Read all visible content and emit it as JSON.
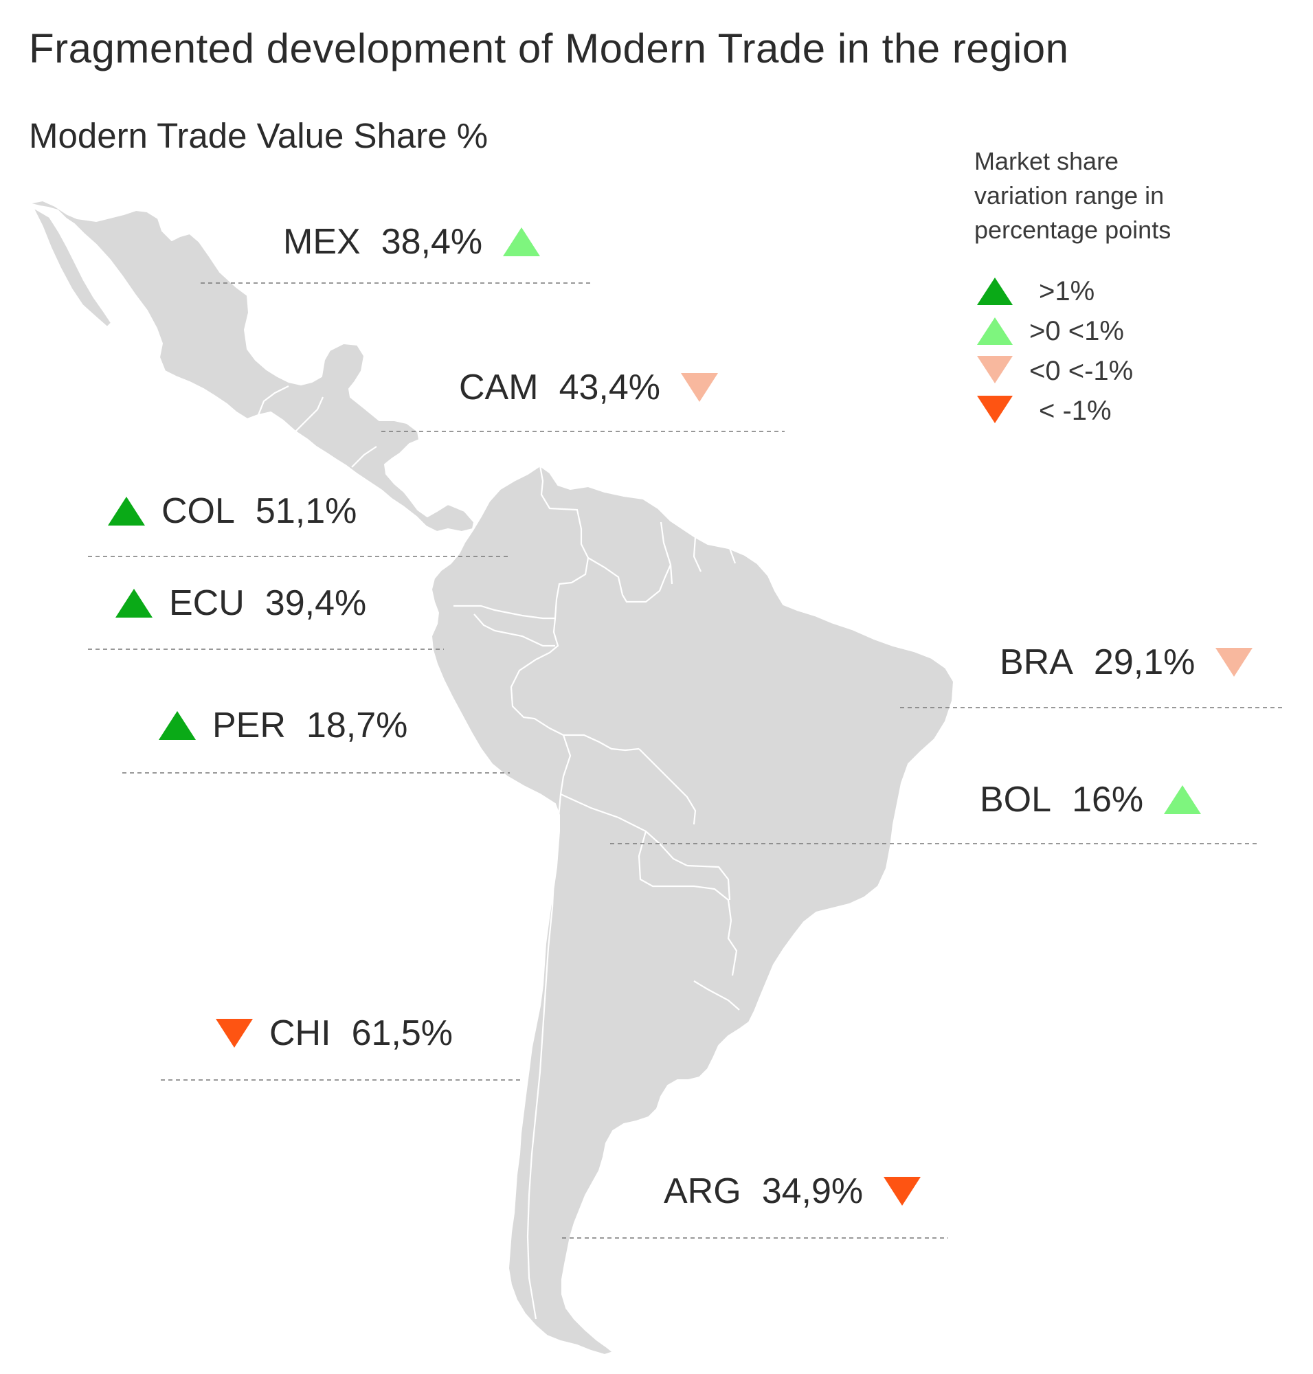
{
  "title": "Fragmented development of Modern Trade in the region",
  "subtitle": "Modern Trade Value Share %",
  "colors": {
    "land": "#d9d9d9",
    "border": "#ffffff",
    "leader": "#777777",
    "up_strong": "#0aaa17",
    "up_light": "#7ef57e",
    "down_light": "#f8b89e",
    "down_strong": "#fe5412"
  },
  "legend": {
    "title_lines": [
      "Market share",
      "variation range in",
      "percentage points"
    ],
    "items": [
      {
        "label": ">1%",
        "icon": "triangle-up-icon",
        "color": "#0aaa17"
      },
      {
        "label": ">0 <1%",
        "icon": "triangle-up-icon",
        "color": "#7ef57e"
      },
      {
        "label": "<0 <-1%",
        "icon": "triangle-down-icon",
        "color": "#f8b89e"
      },
      {
        "label": "< -1%",
        "icon": "triangle-down-icon",
        "color": "#fe5412"
      }
    ]
  },
  "countries": [
    {
      "code": "MEX",
      "value": "38,4%",
      "trend": "up",
      "color": "#7ef57e"
    },
    {
      "code": "CAM",
      "value": "43,4%",
      "trend": "down",
      "color": "#f8b89e"
    },
    {
      "code": "COL",
      "value": "51,1%",
      "trend": "up",
      "color": "#0aaa17"
    },
    {
      "code": "ECU",
      "value": "39,4%",
      "trend": "up",
      "color": "#0aaa17"
    },
    {
      "code": "PER",
      "value": "18,7%",
      "trend": "up",
      "color": "#0aaa17"
    },
    {
      "code": "BRA",
      "value": "29,1%",
      "trend": "down",
      "color": "#f8b89e"
    },
    {
      "code": "BOL",
      "value": "16%",
      "trend": "up",
      "color": "#7ef57e"
    },
    {
      "code": "CHI",
      "value": "61,5%",
      "trend": "down",
      "color": "#fe5412"
    },
    {
      "code": "ARG",
      "value": "34,9%",
      "trend": "down",
      "color": "#fe5412"
    }
  ]
}
